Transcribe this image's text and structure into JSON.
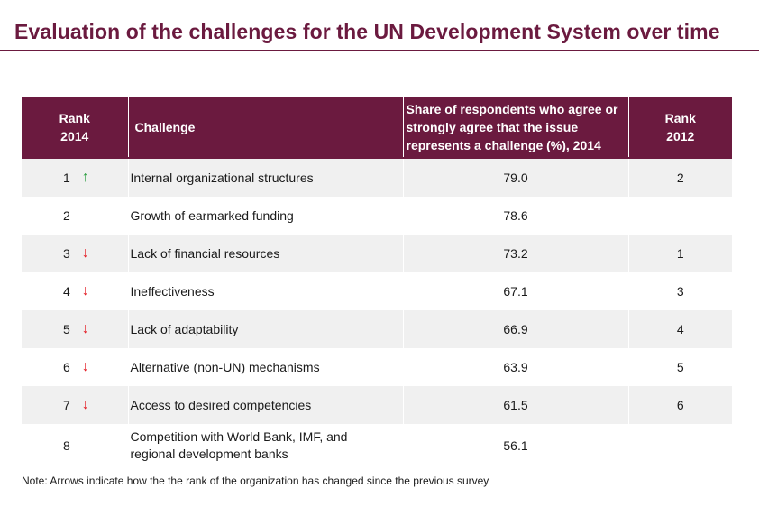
{
  "title": "Evaluation of the challenges for the UN Development System over time",
  "headers": {
    "rank_2014": [
      "Rank",
      "2014"
    ],
    "challenge": "Challenge",
    "share": [
      "Share of respondents who agree or",
      "strongly agree that the issue",
      "represents a challenge (%), 2014"
    ],
    "rank_2012": [
      "Rank",
      "2012"
    ]
  },
  "rows": [
    {
      "rank2014": "1",
      "trend": "up",
      "symbol": "↑",
      "challenge": [
        "Internal organizational structures"
      ],
      "share": "79.0",
      "rank2012": "2"
    },
    {
      "rank2014": "2",
      "trend": "same",
      "symbol": "—",
      "challenge": [
        "Growth of earmarked funding"
      ],
      "share": "78.6",
      "rank2012": ""
    },
    {
      "rank2014": "3",
      "trend": "down",
      "symbol": "↓",
      "challenge": [
        "Lack of financial resources"
      ],
      "share": "73.2",
      "rank2012": "1"
    },
    {
      "rank2014": "4",
      "trend": "down",
      "symbol": "↓",
      "challenge": [
        "Ineffectiveness"
      ],
      "share": "67.1",
      "rank2012": "3"
    },
    {
      "rank2014": "5",
      "trend": "down",
      "symbol": "↓",
      "challenge": [
        "Lack of adaptability"
      ],
      "share": "66.9",
      "rank2012": "4"
    },
    {
      "rank2014": "6",
      "trend": "down",
      "symbol": "↓",
      "challenge": [
        "Alternative (non-UN) mechanisms"
      ],
      "share": "63.9",
      "rank2012": "5"
    },
    {
      "rank2014": "7",
      "trend": "down",
      "symbol": "↓",
      "challenge": [
        "Access to desired competencies"
      ],
      "share": "61.5",
      "rank2012": "6"
    },
    {
      "rank2014": "8",
      "trend": "same",
      "symbol": "—",
      "challenge": [
        "Competition with World Bank, IMF, and",
        "regional development banks"
      ],
      "share": "56.1",
      "rank2012": ""
    }
  ],
  "note": "Note: Arrows indicate how the the rank of the organization has changed since the previous survey",
  "colors": {
    "accent": "#6b1a3f",
    "up": "#2ea043",
    "down": "#e31b23",
    "stripe": "#f0f0f0"
  }
}
